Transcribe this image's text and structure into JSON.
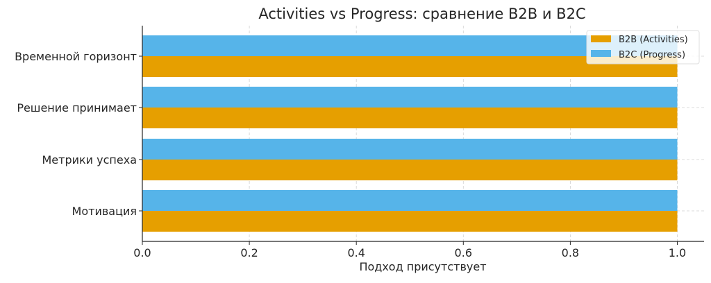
{
  "chart_data": {
    "type": "bar",
    "orientation": "horizontal",
    "title": "Activities vs Progress: сравнение B2B и B2C",
    "xlabel": "Подход присутствует",
    "ylabel": "",
    "categories": [
      "Мотивация",
      "Метрики успеха",
      "Решение принимает",
      "Временной горизонт"
    ],
    "series": [
      {
        "name": "B2B (Activities)",
        "values": [
          1,
          1,
          1,
          1
        ],
        "color": "#E69F00"
      },
      {
        "name": "B2C (Progress)",
        "values": [
          1,
          1,
          1,
          1
        ],
        "color": "#56B4E9"
      }
    ],
    "xlim": [
      0,
      1.05
    ],
    "xticks": [
      "0.0",
      "0.2",
      "0.4",
      "0.6",
      "0.8",
      "1.0"
    ],
    "grid": true,
    "legend_position": "top-right"
  }
}
